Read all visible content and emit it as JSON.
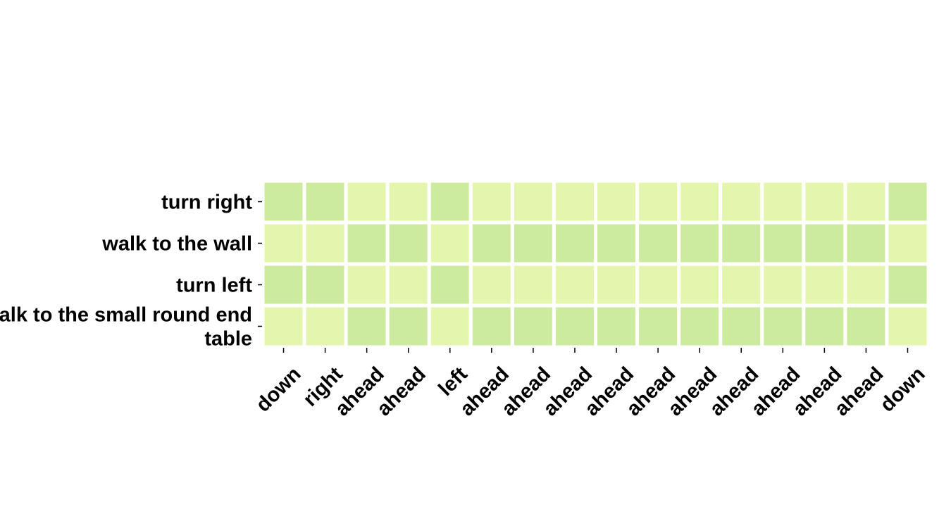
{
  "chart_data": {
    "type": "heatmap",
    "title": "",
    "xlabel": "",
    "ylabel": "",
    "rows": [
      "turn right",
      "walk to the wall",
      "turn left",
      "walk to the small round end table"
    ],
    "columns": [
      "down",
      "right",
      "ahead",
      "ahead",
      "left",
      "ahead",
      "ahead",
      "ahead",
      "ahead",
      "ahead",
      "ahead",
      "ahead",
      "ahead",
      "ahead",
      "ahead",
      "down"
    ],
    "values": [
      [
        0.65,
        0.65,
        0.35,
        0.35,
        0.65,
        0.35,
        0.35,
        0.35,
        0.35,
        0.35,
        0.35,
        0.35,
        0.35,
        0.35,
        0.35,
        0.65
      ],
      [
        0.35,
        0.35,
        0.65,
        0.65,
        0.35,
        0.65,
        0.65,
        0.65,
        0.65,
        0.65,
        0.65,
        0.65,
        0.65,
        0.65,
        0.65,
        0.35
      ],
      [
        0.65,
        0.65,
        0.35,
        0.35,
        0.65,
        0.35,
        0.35,
        0.35,
        0.35,
        0.35,
        0.35,
        0.35,
        0.35,
        0.35,
        0.35,
        0.65
      ],
      [
        0.35,
        0.35,
        0.65,
        0.65,
        0.35,
        0.65,
        0.65,
        0.65,
        0.65,
        0.65,
        0.65,
        0.65,
        0.65,
        0.65,
        0.65,
        0.35
      ]
    ],
    "colormap": {
      "low": "#e4f5ae",
      "high": "#cdeb9e"
    },
    "grid": false,
    "legend": "none"
  }
}
